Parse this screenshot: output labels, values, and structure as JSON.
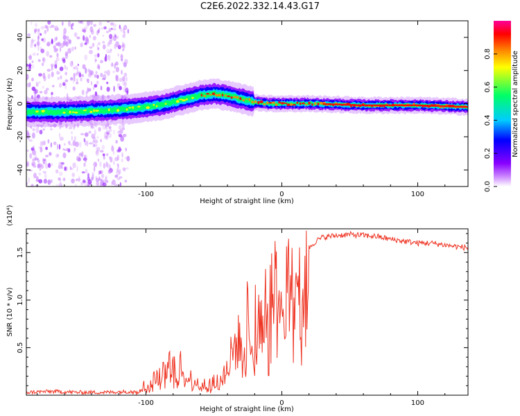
{
  "title": "C2E6.2022.332.14.43.G17",
  "colors": {
    "snr_line": "#ee3322",
    "frame": "#000000",
    "colormap": [
      "#ffffff",
      "#cc88ff",
      "#8800ff",
      "#0000ff",
      "#00ccff",
      "#00ff66",
      "#ffff00",
      "#ff8800",
      "#ff0000",
      "#ff0099"
    ]
  },
  "chart_data": [
    {
      "type": "heatmap",
      "xlabel": "Height of straight line (km)",
      "ylabel": "Frequency (Hz)",
      "xlim": [
        -188,
        137
      ],
      "ylim": [
        -50,
        50
      ],
      "xticks": [
        -100,
        0,
        100
      ],
      "yticks": [
        -40,
        -20,
        0,
        20,
        40
      ],
      "ridge": {
        "x": [
          -188,
          -160,
          -130,
          -110,
          -90,
          -80,
          -70,
          -60,
          -50,
          -40,
          -30,
          -20,
          -10,
          0,
          20,
          60,
          100,
          137
        ],
        "y": [
          -5,
          -5,
          -4,
          -3,
          -1,
          1,
          3,
          5,
          6,
          5,
          3,
          1,
          0,
          0,
          0,
          -1,
          -1,
          -2
        ]
      },
      "colorbar": {
        "label": "Normalized spectral amplitude",
        "range": [
          0,
          1
        ],
        "ticks": [
          0.0,
          0.2,
          0.4,
          0.6,
          0.8
        ],
        "tick_labels": [
          "0.0",
          "0.2",
          "0.4",
          "0.6",
          "0.8"
        ]
      },
      "grid": false
    },
    {
      "type": "line",
      "xlabel": "Height of straight line (km)",
      "ylabel": "SNR (10 * v/v)",
      "scale_note": "(x10⁴)",
      "xlim": [
        -188,
        137
      ],
      "ylim": [
        0,
        1.75
      ],
      "xticks": [
        -100,
        0,
        100
      ],
      "yticks": [
        0.5,
        1.0,
        1.5
      ],
      "ytick_labels": [
        "0.5",
        "1.0",
        "1.5"
      ],
      "series": [
        {
          "x": [
            -188,
            -170,
            -150,
            -130,
            -110,
            -100,
            -90,
            -85,
            -80,
            -75,
            -70,
            -65,
            -60,
            -55,
            -50,
            -45,
            -40,
            -35,
            -30,
            -25,
            -20,
            -15,
            -10,
            -5,
            0,
            5,
            10,
            15,
            20,
            25,
            30,
            40,
            50,
            60,
            70,
            80,
            90,
            100,
            110,
            120,
            130,
            137
          ],
          "y": [
            0.03,
            0.04,
            0.03,
            0.03,
            0.04,
            0.1,
            0.18,
            0.3,
            0.28,
            0.3,
            0.18,
            0.15,
            0.12,
            0.1,
            0.12,
            0.15,
            0.3,
            0.5,
            0.6,
            0.9,
            0.75,
            1.0,
            0.9,
            1.1,
            0.95,
            1.15,
            1.3,
            1.45,
            1.55,
            1.62,
            1.66,
            1.68,
            1.69,
            1.68,
            1.67,
            1.64,
            1.62,
            1.6,
            1.6,
            1.58,
            1.56,
            1.55
          ]
        }
      ],
      "grid": false
    }
  ]
}
